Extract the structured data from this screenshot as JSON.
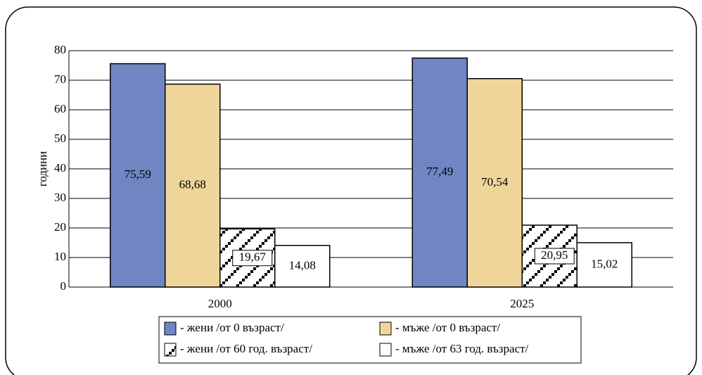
{
  "chart_data": {
    "type": "bar",
    "categories": [
      "2000",
      "2025"
    ],
    "y_label": "години",
    "ylim": [
      0,
      80
    ],
    "yticks": [
      0,
      10,
      20,
      30,
      40,
      50,
      60,
      70,
      80
    ],
    "grid": true,
    "series": [
      {
        "name": "- жени /от 0 възраст/",
        "color": "#6f86c3",
        "values": [
          75.59,
          77.49
        ],
        "value_labels": [
          "75,59",
          "77,49"
        ]
      },
      {
        "name": "- мъже /от 0 възраст/",
        "color": "#f0d59b",
        "values": [
          68.68,
          70.54
        ],
        "value_labels": [
          "68,68",
          "70,54"
        ]
      },
      {
        "name": "- жени /от 60 год. възраст/",
        "color": "pattern",
        "values": [
          19.67,
          20.95
        ],
        "value_labels": [
          "19,67",
          "20,95"
        ]
      },
      {
        "name": "- мъже /от 63 год. възраст/",
        "color": "#ffffff",
        "values": [
          14.08,
          15.02
        ],
        "value_labels": [
          "14,08",
          "15,02"
        ]
      }
    ]
  }
}
